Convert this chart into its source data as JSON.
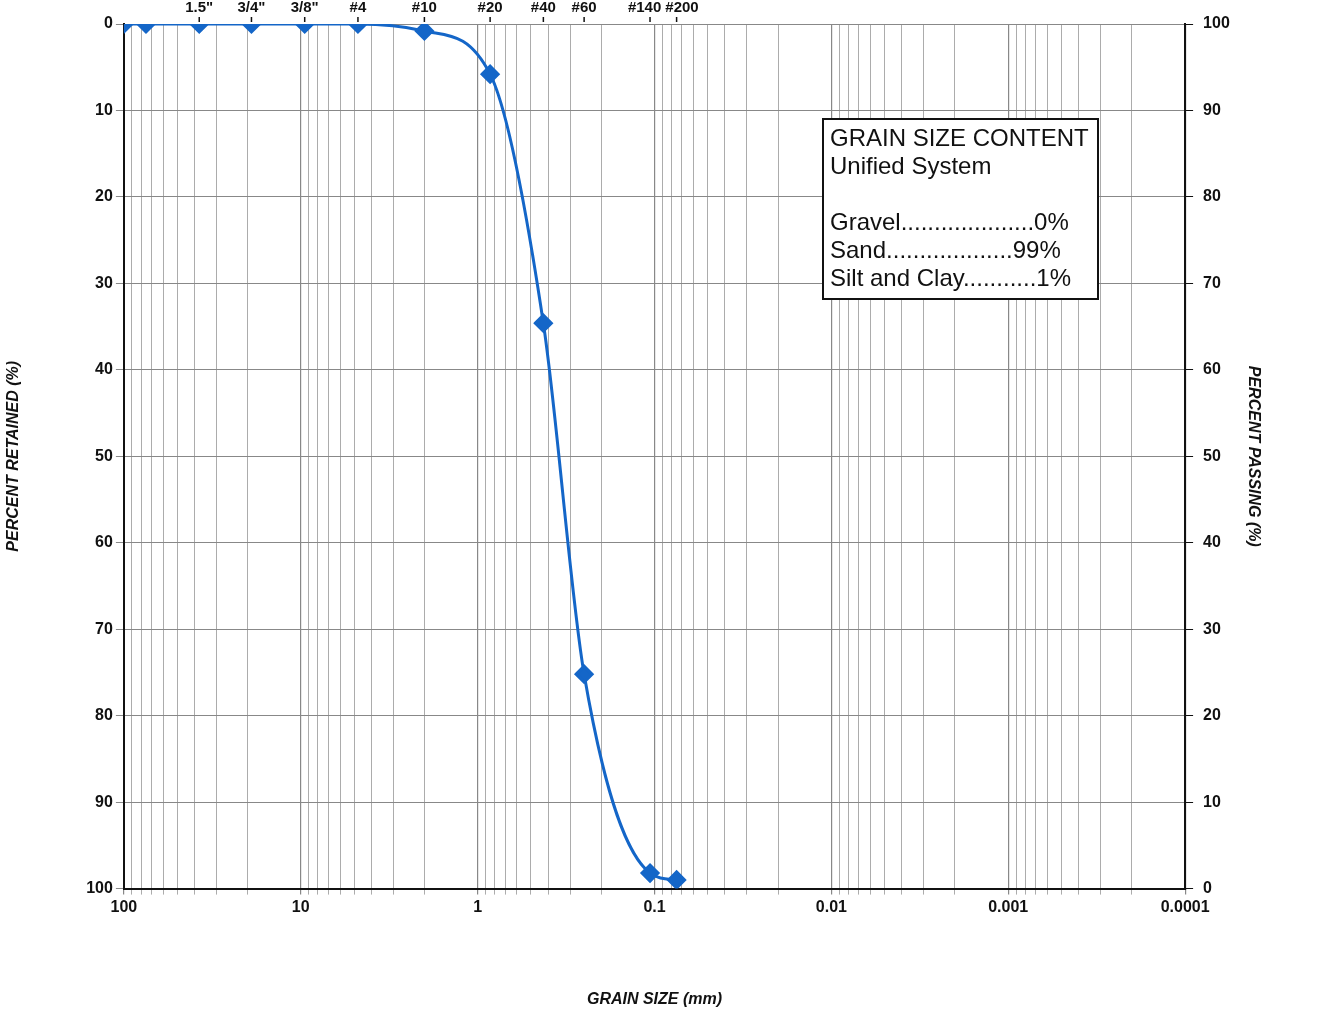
{
  "chart_data": {
    "type": "line",
    "xlabel": "GRAIN SIZE (mm)",
    "ylabel": "PERCENT RETAINED (%)",
    "y2label": "PERCENT PASSING (%)",
    "log": "x",
    "grid": true,
    "marker": "diamond",
    "line_style": "solid",
    "legend": false,
    "xlim": [
      100,
      0.0001
    ],
    "xticks": [
      100,
      {
        "value": 90,
        "label": null
      },
      {
        "value": 80,
        "label": null
      },
      {
        "value": 70,
        "label": null
      },
      {
        "value": 60,
        "label": null
      },
      {
        "value": 50,
        "label": null
      },
      {
        "value": 40,
        "label": null
      },
      {
        "value": 30,
        "label": null
      },
      {
        "value": 20,
        "label": null
      },
      10,
      {
        "value": 9,
        "label": null
      },
      {
        "value": 8,
        "label": null
      },
      {
        "value": 7,
        "label": null
      },
      {
        "value": 6,
        "label": null
      },
      {
        "value": 5,
        "label": null
      },
      {
        "value": 4,
        "label": null
      },
      {
        "value": 3,
        "label": null
      },
      {
        "value": 2,
        "label": null
      },
      1,
      {
        "value": 0.9,
        "label": null
      },
      {
        "value": 0.8,
        "label": null
      },
      {
        "value": 0.7,
        "label": null
      },
      {
        "value": 0.6,
        "label": null
      },
      {
        "value": 0.5,
        "label": null
      },
      {
        "value": 0.4,
        "label": null
      },
      {
        "value": 0.3,
        "label": null
      },
      {
        "value": 0.2,
        "label": null
      },
      0.1,
      {
        "value": 0.09,
        "label": null
      },
      {
        "value": 0.08,
        "label": null
      },
      {
        "value": 0.07,
        "label": null
      },
      {
        "value": 0.06,
        "label": null
      },
      {
        "value": 0.05,
        "label": null
      },
      {
        "value": 0.04,
        "label": null
      },
      {
        "value": 0.03,
        "label": null
      },
      {
        "value": 0.02,
        "label": null
      },
      0.01,
      {
        "value": 0.009,
        "label": null
      },
      {
        "value": 0.008,
        "label": null
      },
      {
        "value": 0.007,
        "label": null
      },
      {
        "value": 0.006,
        "label": null
      },
      {
        "value": 0.005,
        "label": null
      },
      {
        "value": 0.004,
        "label": null
      },
      {
        "value": 0.003,
        "label": null
      },
      {
        "value": 0.002,
        "label": null
      },
      0.001,
      {
        "value": 0.0009,
        "label": null
      },
      {
        "value": 0.0008,
        "label": null
      },
      {
        "value": 0.0007,
        "label": null
      },
      {
        "value": 0.0006,
        "label": null
      },
      {
        "value": 0.0005,
        "label": null
      },
      {
        "value": 0.0004,
        "label": null
      },
      {
        "value": 0.0003,
        "label": null
      },
      {
        "value": 0.0002,
        "label": null
      },
      0.0001
    ],
    "ylim": [
      100,
      0
    ],
    "yticks": [
      0,
      10,
      20,
      30,
      40,
      50,
      60,
      70,
      80,
      90,
      100
    ],
    "y2lim": [
      0,
      100
    ],
    "y2ticks": [
      0,
      10,
      20,
      30,
      40,
      50,
      60,
      70,
      80,
      90,
      100
    ],
    "x": [
      100,
      75,
      37.5,
      19,
      9.5,
      4.75,
      2,
      0.85,
      0.425,
      0.25,
      0.106,
      0.075
    ],
    "series": [
      {
        "color": "#1466c8",
        "values": [
          0,
          0,
          0,
          0,
          0,
          0,
          0.8,
          5.8,
          34.6,
          75.2,
          98.2,
          99
        ]
      }
    ],
    "annotations": [
      "GRAIN SIZE CONTENT",
      "Unified System",
      "Gravel....................0%",
      "Sand...................99%",
      "Silt and Clay...........1%",
      {
        "text": "1.5\"",
        "x": 37.5
      },
      {
        "text": "3/4\"",
        "x": 19
      },
      {
        "text": "3/8\"",
        "x": 9.5
      },
      {
        "text": "#4",
        "x": 4.75
      },
      {
        "text": "#10",
        "x": 2
      },
      {
        "text": "#20",
        "x": 0.85
      },
      {
        "text": "#40",
        "x": 0.425
      },
      {
        "text": "#60",
        "x": 0.25
      },
      {
        "text": "#140",
        "x": 0.106
      },
      {
        "text": "#200",
        "x": 0.075
      }
    ]
  }
}
